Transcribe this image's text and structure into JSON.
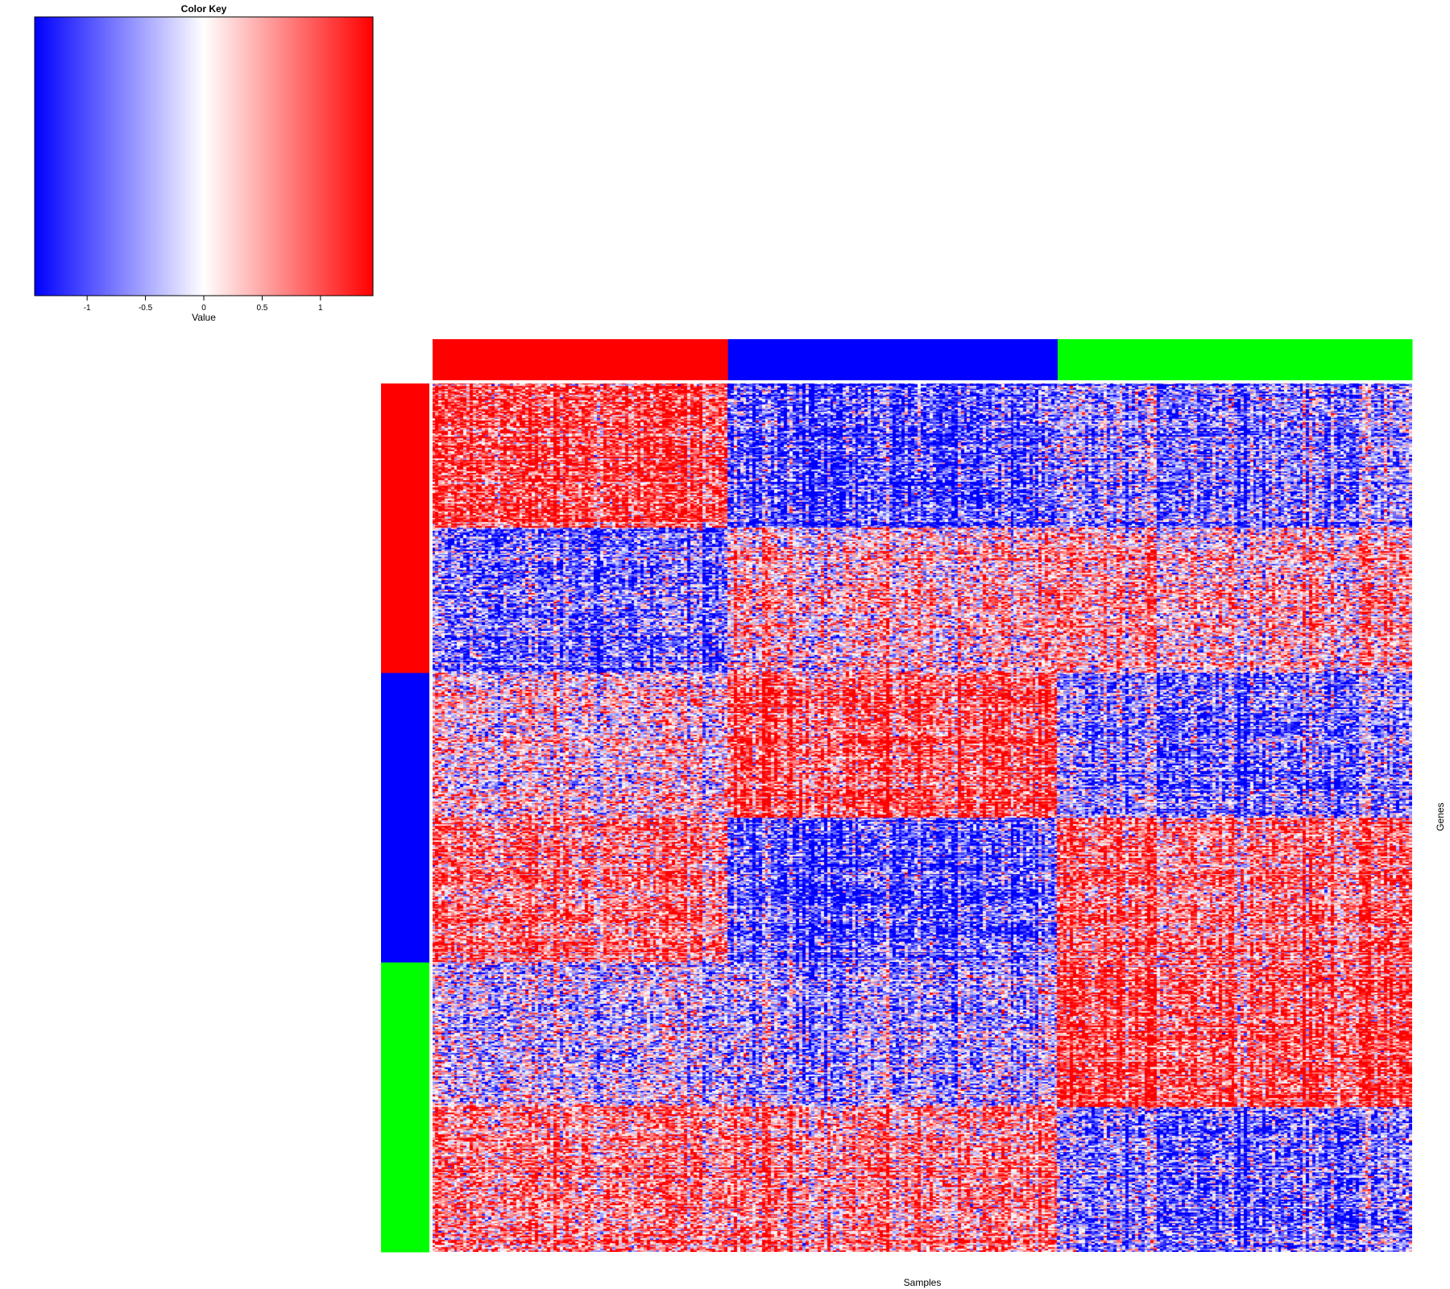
{
  "chart_data": {
    "type": "heatmap",
    "title": "",
    "xlabel": "Samples",
    "ylabel": "Genes",
    "color_key": {
      "title": "Color Key",
      "xlabel": "Value",
      "range": [
        -1.45,
        1.45
      ],
      "ticks": [
        -1,
        -0.5,
        0,
        0.5,
        1
      ],
      "tick_labels": [
        "-1",
        "-0.5",
        "0",
        "0.5",
        "1"
      ],
      "colors": [
        "#0000ff",
        "#ffffff",
        "#ff0000"
      ]
    },
    "column_groups": [
      {
        "color": "#ff0000",
        "count": 95
      },
      {
        "color": "#0000ff",
        "count": 106
      },
      {
        "color": "#00ff00",
        "count": 114
      }
    ],
    "row_groups": [
      {
        "color": "#ff0000",
        "count": 200
      },
      {
        "color": "#0000ff",
        "count": 200
      },
      {
        "color": "#00ff00",
        "count": 200
      }
    ],
    "row_blocks": [
      {
        "rows": 100,
        "means": [
          1.1,
          -1.0,
          -0.6
        ]
      },
      {
        "rows": 100,
        "means": [
          -0.8,
          0.3,
          0.4
        ]
      },
      {
        "rows": 100,
        "means": [
          0.1,
          1.0,
          -0.7
        ]
      },
      {
        "rows": 100,
        "means": [
          0.7,
          -1.0,
          0.8
        ]
      },
      {
        "rows": 100,
        "means": [
          -0.3,
          -0.5,
          1.0
        ]
      },
      {
        "rows": 100,
        "means": [
          0.6,
          0.6,
          -0.8
        ]
      }
    ]
  }
}
